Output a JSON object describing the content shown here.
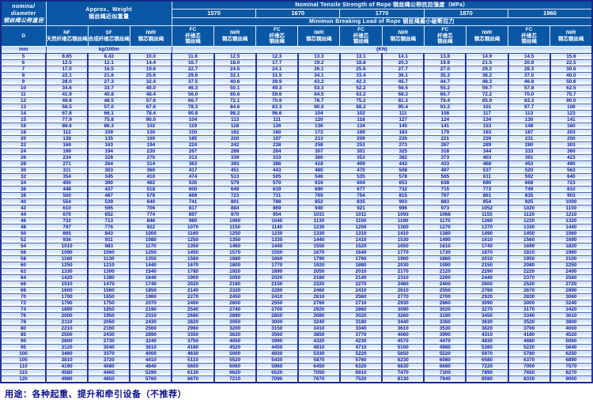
{
  "colors": {
    "header_bg": "#0a57a5",
    "body_text": "#0a1c9e",
    "grid": "#25369a",
    "row_tint": "#c6def2"
  },
  "header": {
    "diameter": "nominal\ndiameter\n钢丝绳公称直径",
    "diameter_symbol": "D",
    "diameter_unit": "mm",
    "weight_title": "Approx．Weight\n钢丝绳近似重量",
    "weight_unit": "kg/100m",
    "nf": "NF\n天然纤维芯钢丝绳",
    "sf": "SF\n合成纤维芯钢丝绳",
    "iwr": "IWR\n钢芯钢丝绳",
    "strength_title": "Nominal Tensile Strength of Rope 钢丝绳公称抗拉强度（MPa）",
    "grades": [
      "1570",
      "1670",
      "1770",
      "1870",
      "1960"
    ],
    "breaking_title": "Minimun Breaking Load of Rope 钢丝绳最小破断拉力",
    "fc": "FC\n纤维芯\n钢丝绳",
    "iwr_core": "IWR\n钢芯钢丝绳",
    "load_unit": "(KN)"
  },
  "rows": [
    [
      "5",
      "8.65",
      "8.43",
      "10.0",
      "11.6",
      "12.5",
      "12.3",
      "13.3",
      "13.1",
      "14.1",
      "13.8",
      "14.9",
      "14.5",
      "15.6"
    ],
    [
      "6",
      "12.5",
      "12.1",
      "14.4",
      "16.7",
      "18.0",
      "17.7",
      "19.2",
      "18.8",
      "20.3",
      "19.9",
      "21.5",
      "20.8",
      "22.5"
    ],
    [
      "7",
      "17.0",
      "16.5",
      "19.6",
      "22.7",
      "24.5",
      "24.1",
      "26.1",
      "25.6",
      "27.7",
      "27.0",
      "29.2",
      "28.3",
      "30.6"
    ],
    [
      "8",
      "22.1",
      "21.6",
      "25.6",
      "29.6",
      "32.1",
      "31.5",
      "34.1",
      "33.4",
      "36.1",
      "35.3",
      "38.2",
      "37.0",
      "40.0"
    ],
    [
      "9",
      "28.0",
      "27.3",
      "32.4",
      "37.5",
      "40.6",
      "39.9",
      "43.2",
      "42.3",
      "45.7",
      "44.7",
      "48.3",
      "46.8",
      "50.6"
    ],
    [
      "10",
      "34.6",
      "33.7",
      "40.0",
      "46.3",
      "50.1",
      "49.3",
      "53.3",
      "52.2",
      "56.5",
      "55.2",
      "59.7",
      "57.8",
      "62.5"
    ],
    [
      "11",
      "41.9",
      "40.8",
      "48.4",
      "56.0",
      "60.6",
      "59.6",
      "64.5",
      "63.2",
      "68.3",
      "66.7",
      "72.2",
      "70.0",
      "75.7"
    ],
    [
      "12",
      "49.8",
      "48.5",
      "57.6",
      "66.7",
      "72.1",
      "70.9",
      "76.7",
      "75.2",
      "81.3",
      "79.4",
      "85.9",
      "83.3",
      "90.0"
    ],
    [
      "13",
      "58.5",
      "57.0",
      "67.6",
      "78.3",
      "84.6",
      "83.3",
      "90.0",
      "88.2",
      "95.4",
      "93.2",
      "101",
      "97.7",
      "106"
    ],
    [
      "14",
      "67.8",
      "66.1",
      "78.4",
      "90.8",
      "98.2",
      "96.6",
      "104",
      "102",
      "111",
      "108",
      "117",
      "113",
      "123"
    ],
    [
      "15",
      "77.9",
      "75.8",
      "90.0",
      "104",
      "113",
      "111",
      "120",
      "118",
      "127",
      "124",
      "134",
      "130",
      "141"
    ],
    [
      "16",
      "88.6",
      "86.3",
      "102",
      "119",
      "128",
      "126",
      "136",
      "134",
      "145",
      "141",
      "153",
      "148",
      "160"
    ],
    [
      "18",
      "112",
      "109",
      "130",
      "150",
      "162",
      "160",
      "173",
      "169",
      "183",
      "179",
      "193",
      "187",
      "203"
    ],
    [
      "20",
      "138",
      "135",
      "160",
      "185",
      "200",
      "197",
      "213",
      "209",
      "226",
      "221",
      "239",
      "231",
      "250"
    ],
    [
      "22",
      "168",
      "163",
      "194",
      "224",
      "242",
      "238",
      "258",
      "253",
      "273",
      "267",
      "289",
      "280",
      "303"
    ],
    [
      "24",
      "199",
      "194",
      "230",
      "267",
      "289",
      "284",
      "307",
      "301",
      "325",
      "318",
      "344",
      "333",
      "360"
    ],
    [
      "26",
      "234",
      "228",
      "270",
      "313",
      "339",
      "333",
      "360",
      "353",
      "382",
      "373",
      "403",
      "391",
      "423"
    ],
    [
      "28",
      "271",
      "264",
      "314",
      "363",
      "393",
      "386",
      "418",
      "409",
      "443",
      "433",
      "468",
      "453",
      "490"
    ],
    [
      "30",
      "311",
      "303",
      "360",
      "417",
      "451",
      "443",
      "480",
      "470",
      "508",
      "497",
      "537",
      "520",
      "563"
    ],
    [
      "32",
      "354",
      "345",
      "410",
      "474",
      "513",
      "505",
      "546",
      "535",
      "578",
      "565",
      "611",
      "592",
      "640"
    ],
    [
      "34",
      "400",
      "390",
      "462",
      "535",
      "579",
      "570",
      "616",
      "604",
      "653",
      "638",
      "690",
      "668",
      "723"
    ],
    [
      "36",
      "448",
      "437",
      "518",
      "600",
      "649",
      "639",
      "690",
      "677",
      "732",
      "715",
      "773",
      "749",
      "810"
    ],
    [
      "38",
      "500",
      "487",
      "578",
      "669",
      "723",
      "711",
      "769",
      "754",
      "815",
      "797",
      "861",
      "835",
      "903"
    ],
    [
      "40",
      "554",
      "539",
      "640",
      "741",
      "801",
      "788",
      "852",
      "835",
      "903",
      "883",
      "954",
      "925",
      "1000"
    ],
    [
      "42",
      "610",
      "595",
      "706",
      "817",
      "884",
      "869",
      "940",
      "921",
      "996",
      "973",
      "1052",
      "1020",
      "1100"
    ],
    [
      "44",
      "670",
      "652",
      "774",
      "897",
      "970",
      "954",
      "1031",
      "1011",
      "1093",
      "1068",
      "1155",
      "1120",
      "1210"
    ],
    [
      "46",
      "732",
      "713",
      "846",
      "980",
      "1060",
      "1040",
      "1130",
      "1100",
      "1190",
      "1170",
      "1260",
      "1220",
      "1320"
    ],
    [
      "48",
      "797",
      "776",
      "922",
      "1070",
      "1150",
      "1140",
      "1230",
      "1200",
      "1300",
      "1270",
      "1370",
      "1330",
      "1440"
    ],
    [
      "50",
      "865",
      "843",
      "1000",
      "1160",
      "1250",
      "1230",
      "1330",
      "1310",
      "1410",
      "1380",
      "1490",
      "1450",
      "1560"
    ],
    [
      "52",
      "936",
      "911",
      "1080",
      "1250",
      "1350",
      "1330",
      "1440",
      "1410",
      "1530",
      "1490",
      "1610",
      "1560",
      "1690"
    ],
    [
      "54",
      "1010",
      "983",
      "1170",
      "1350",
      "1460",
      "1440",
      "1550",
      "1520",
      "1650",
      "1610",
      "1740",
      "1690",
      "1820"
    ],
    [
      "56",
      "1090",
      "1060",
      "1250",
      "1450",
      "1570",
      "1550",
      "1670",
      "1640",
      "1770",
      "1730",
      "1870",
      "1810",
      "1960"
    ],
    [
      "58",
      "1160",
      "1130",
      "1350",
      "1560",
      "1680",
      "1660",
      "1790",
      "1760",
      "1900",
      "1860",
      "2010",
      "1950",
      "2100"
    ],
    [
      "60",
      "1250",
      "1210",
      "1440",
      "1670",
      "1800",
      "1770",
      "1920",
      "1880",
      "2030",
      "1990",
      "2150",
      "2080",
      "2250"
    ],
    [
      "62",
      "1330",
      "1300",
      "1540",
      "1780",
      "1920",
      "1890",
      "2050",
      "2010",
      "2170",
      "2120",
      "2290",
      "2220",
      "2400"
    ],
    [
      "64",
      "1420",
      "1380",
      "1640",
      "1900",
      "2050",
      "2020",
      "2180",
      "2140",
      "2310",
      "2260",
      "2440",
      "2370",
      "2560"
    ],
    [
      "66",
      "1510",
      "1470",
      "1740",
      "2020",
      "2180",
      "2150",
      "2320",
      "2270",
      "2460",
      "2400",
      "2600",
      "2520",
      "2720"
    ],
    [
      "68",
      "1600",
      "1560",
      "1850",
      "2140",
      "2320",
      "2280",
      "2460",
      "2410",
      "2610",
      "2550",
      "2760",
      "2670",
      "2890"
    ],
    [
      "70",
      "1700",
      "1650",
      "1960",
      "2270",
      "2450",
      "2410",
      "2610",
      "2560",
      "2770",
      "2700",
      "2920",
      "2830",
      "3060"
    ],
    [
      "72",
      "1790",
      "1750",
      "2070",
      "2400",
      "2600",
      "2550",
      "2760",
      "2710",
      "2930",
      "2860",
      "3090",
      "3000",
      "3240"
    ],
    [
      "74",
      "1890",
      "1850",
      "2190",
      "2540",
      "2740",
      "2700",
      "2920",
      "2860",
      "3090",
      "3020",
      "3270",
      "3170",
      "3420"
    ],
    [
      "76",
      "2000",
      "1950",
      "2310",
      "2680",
      "2890",
      "2850",
      "3080",
      "3020",
      "3260",
      "3190",
      "3450",
      "3340",
      "3610"
    ],
    [
      "78",
      "2110",
      "2050",
      "2430",
      "2820",
      "3050",
      "3000",
      "3240",
      "3180",
      "3440",
      "3360",
      "3630",
      "3520",
      "3800"
    ],
    [
      "80",
      "2210",
      "2160",
      "2560",
      "2960",
      "3200",
      "3150",
      "3410",
      "3340",
      "3610",
      "3530",
      "3820",
      "3700",
      "4000"
    ],
    [
      "85",
      "2500",
      "2430",
      "2890",
      "3350",
      "3620",
      "3560",
      "3850",
      "3770",
      "4060",
      "3990",
      "4310",
      "4180",
      "4520"
    ],
    [
      "90",
      "2800",
      "2730",
      "3240",
      "3750",
      "4050",
      "3990",
      "4320",
      "4230",
      "4570",
      "4470",
      "4830",
      "4680",
      "5060"
    ],
    [
      "95",
      "3120",
      "3040",
      "3610",
      "4180",
      "4520",
      "4450",
      "4810",
      "4710",
      "5100",
      "4980",
      "5380",
      "5220",
      "5640"
    ],
    [
      "100",
      "3460",
      "3370",
      "4000",
      "4630",
      "5000",
      "4930",
      "5330",
      "5220",
      "5650",
      "5520",
      "5970",
      "5780",
      "6250"
    ],
    [
      "105",
      "3810",
      "3720",
      "4410",
      "5110",
      "5520",
      "5430",
      "5870",
      "5760",
      "6230",
      "6080",
      "6580",
      "6370",
      "6890"
    ],
    [
      "110",
      "4190",
      "4080",
      "4840",
      "5600",
      "6060",
      "5960",
      "6450",
      "6320",
      "6830",
      "6680",
      "7220",
      "7000",
      "7570"
    ],
    [
      "115",
      "4580",
      "4460",
      "5290",
      "6130",
      "6620",
      "6520",
      "7050",
      "6910",
      "7470",
      "7300",
      "7890",
      "7650",
      "8270"
    ],
    [
      "120",
      "4980",
      "4850",
      "5760",
      "6670",
      "7210",
      "7090",
      "7670",
      "7520",
      "8130",
      "7940",
      "8590",
      "8330",
      "9000"
    ]
  ],
  "footer": {
    "usage": "用途：各种起重、提升和牵引设备（不推荐）"
  }
}
